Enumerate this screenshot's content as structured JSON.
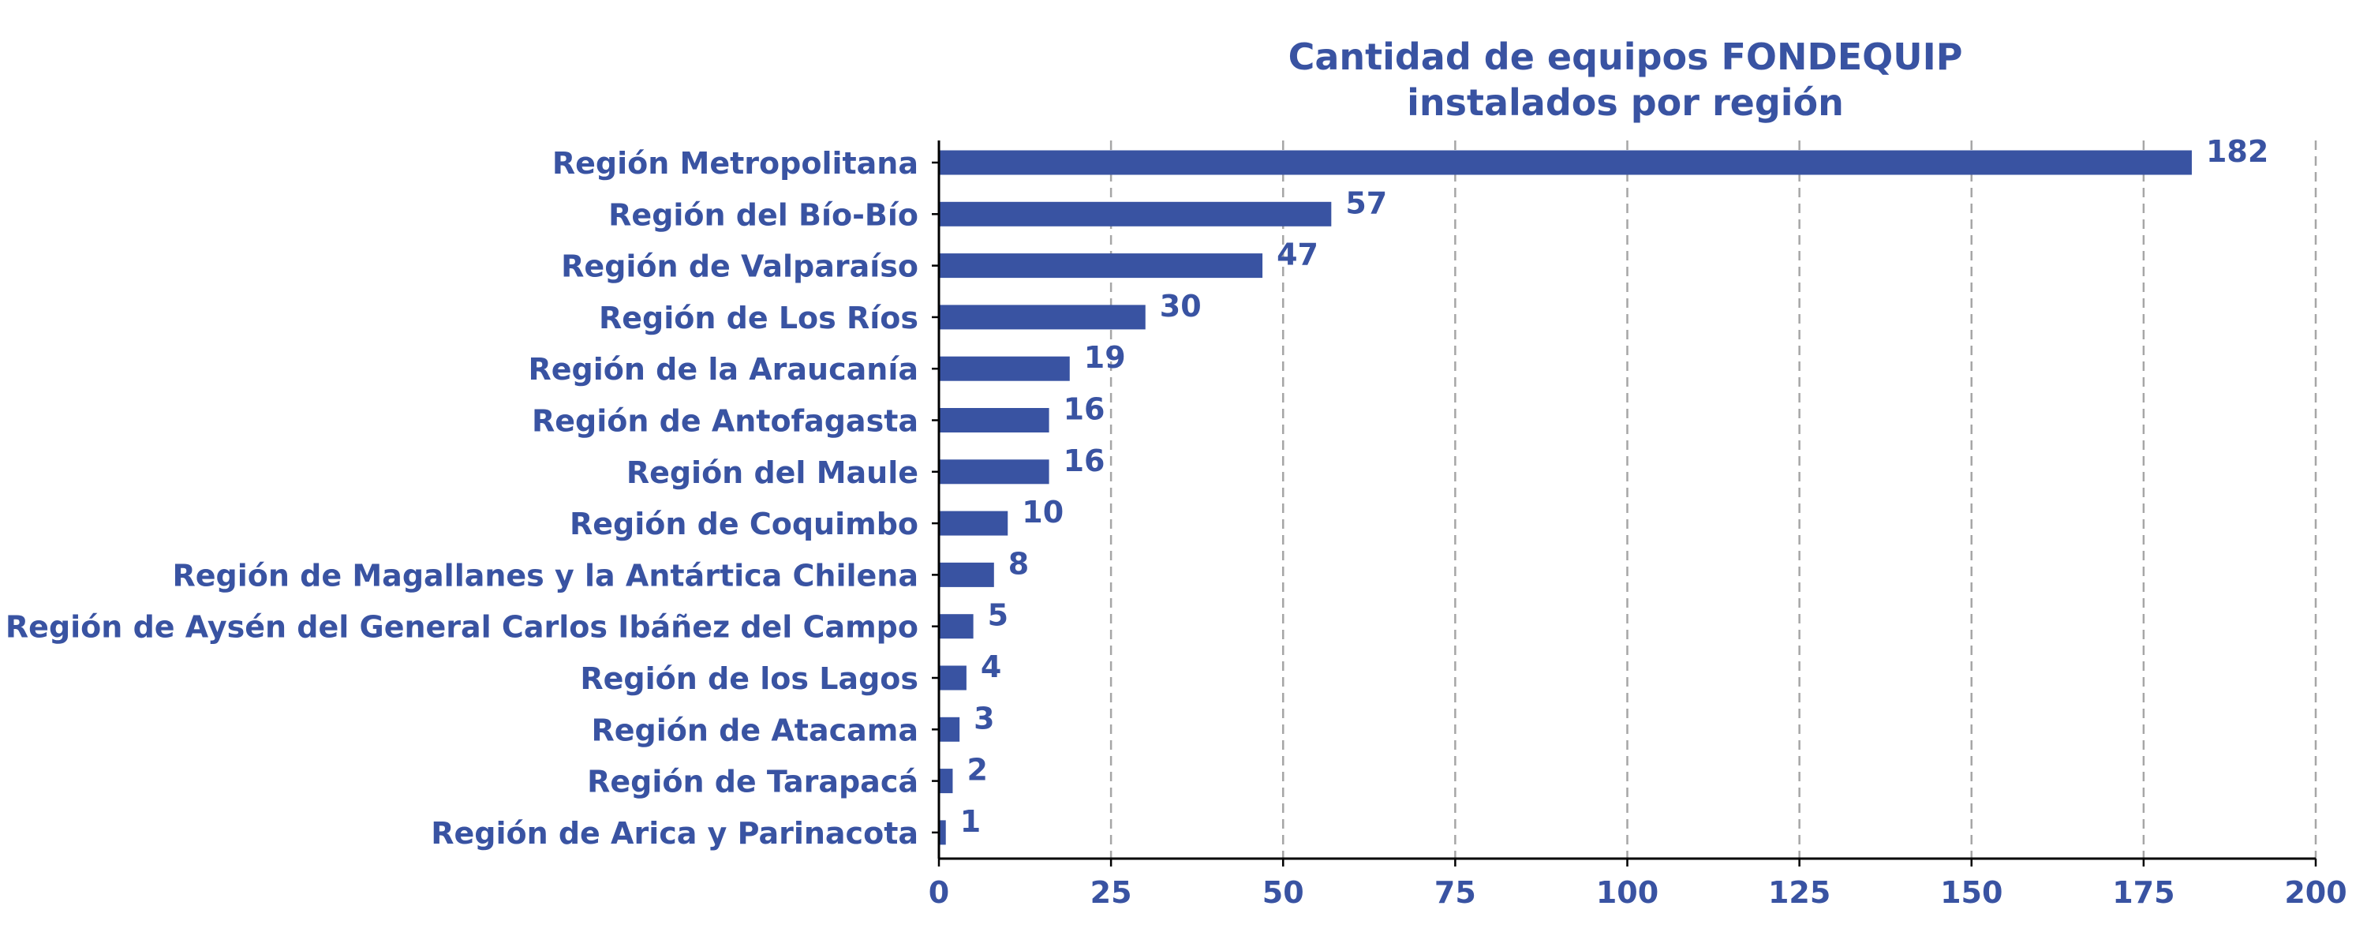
{
  "colors": {
    "bar": "#3953a2",
    "text": "#3953a2",
    "grid": "#a6a6a6",
    "axis": "#000000"
  },
  "chart_data": {
    "type": "bar",
    "orientation": "horizontal",
    "title_lines": [
      "Cantidad de equipos FONDEQUIP",
      "instalados por región"
    ],
    "xlabel": "",
    "ylabel": "",
    "categories": [
      "Región Metropolitana",
      "Región del Bío-Bío",
      "Región de Valparaíso",
      "Región de Los Ríos",
      "Región de la Araucanía",
      "Región de Antofagasta",
      "Región del Maule",
      "Región de Coquimbo",
      "Región de Magallanes y la Antártica Chilena",
      "Región de Aysén del General Carlos Ibáñez del Campo",
      "Región de los Lagos",
      "Región de Atacama",
      "Región de Tarapacá",
      "Región de Arica y Parinacota"
    ],
    "values": [
      182,
      57,
      47,
      30,
      19,
      16,
      16,
      10,
      8,
      5,
      4,
      3,
      2,
      1
    ],
    "data_labels": [
      "182",
      "57",
      "47",
      "30",
      "19",
      "16",
      "16",
      "10",
      "8",
      "5",
      "4",
      "3",
      "2",
      "1"
    ],
    "xlim": [
      0,
      200
    ],
    "xticks": [
      0,
      25,
      50,
      75,
      100,
      125,
      150,
      175,
      200
    ],
    "xtick_labels": [
      "0",
      "25",
      "50",
      "75",
      "100",
      "125",
      "150",
      "175",
      "200"
    ],
    "grid": "vertical dashed",
    "legend": "none"
  }
}
